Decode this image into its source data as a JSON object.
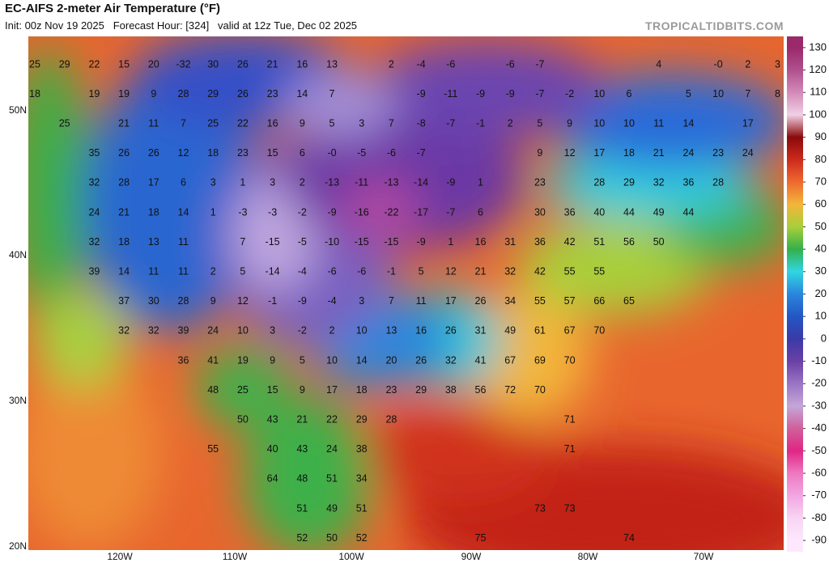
{
  "header": {
    "title": "EC-AIFS 2-meter Air Temperature (°F)",
    "subtitle": "Init: 00z Nov 19 2025   Forecast Hour: [324]   valid at 12z Tue, Dec 02 2025",
    "watermark": "TROPICALTIDBITS.COM"
  },
  "map": {
    "lat_labels": [
      "50N",
      "40N",
      "30N",
      "20N"
    ],
    "lon_labels": [
      "120W",
      "110W",
      "100W",
      "90W",
      "80W",
      "70W"
    ],
    "temperature_labels": [
      [
        25,
        29,
        22,
        15,
        20,
        -32,
        30,
        26,
        21,
        16,
        13,
        2,
        -4,
        -6,
        -6,
        -7,
        4,
        "-0",
        2,
        3
      ],
      [
        18,
        19,
        19,
        9,
        28,
        29,
        26,
        23,
        14,
        7,
        -9,
        -11,
        -9,
        -9,
        -7,
        -2,
        10,
        6,
        5,
        10,
        7,
        8
      ],
      [
        25,
        21,
        11,
        7,
        25,
        22,
        16,
        9,
        5,
        3,
        7,
        -8,
        -7,
        -1,
        2,
        5,
        9,
        10,
        10,
        11,
        14,
        17
      ],
      [
        35,
        26,
        26,
        12,
        18,
        23,
        15,
        6,
        "-0",
        -5,
        -6,
        -7,
        9,
        12,
        17,
        18,
        21,
        24,
        23,
        24
      ],
      [
        32,
        28,
        17,
        6,
        3,
        1,
        3,
        2,
        -13,
        -11,
        -13,
        -14,
        -9,
        1,
        23,
        28,
        29,
        32,
        36,
        28
      ],
      [
        24,
        21,
        18,
        14,
        1,
        -3,
        -3,
        -2,
        -9,
        -16,
        -22,
        -17,
        -7,
        6,
        30,
        36,
        40,
        44,
        49,
        44
      ],
      [
        32,
        18,
        13,
        11,
        7,
        -15,
        -5,
        -10,
        -15,
        -15,
        -9,
        1,
        16,
        31,
        36,
        42,
        51,
        56,
        50
      ],
      [
        39,
        14,
        11,
        11,
        2,
        5,
        -14,
        -4,
        -6,
        -6,
        -1,
        5,
        12,
        21,
        32,
        42,
        55,
        55
      ],
      [
        37,
        30,
        28,
        9,
        12,
        -1,
        -9,
        -4,
        3,
        7,
        11,
        17,
        26,
        34,
        55,
        57,
        66,
        65
      ],
      [
        32,
        32,
        39,
        24,
        10,
        3,
        -2,
        2,
        10,
        13,
        16,
        26,
        31,
        49,
        61,
        67,
        70
      ],
      [
        36,
        41,
        19,
        9,
        5,
        10,
        14,
        20,
        26,
        32,
        41,
        67,
        69,
        70
      ],
      [
        48,
        25,
        15,
        9,
        17,
        18,
        23,
        29,
        38,
        56,
        72,
        70
      ],
      [
        50,
        43,
        21,
        22,
        29,
        28,
        71
      ],
      [
        55,
        40,
        43,
        24,
        38,
        71
      ],
      [
        64,
        48,
        51,
        34
      ],
      [
        51,
        49,
        51,
        73,
        73
      ],
      [
        52,
        50,
        52,
        75,
        74
      ]
    ]
  },
  "colorbar": {
    "lim": [
      -95,
      135
    ],
    "ticks": [
      130,
      120,
      110,
      100,
      90,
      80,
      70,
      60,
      50,
      40,
      30,
      20,
      10,
      0,
      -10,
      -20,
      -30,
      -40,
      -50,
      -60,
      -70,
      -80,
      -90
    ],
    "colors": [
      "#9a2a6a",
      "#b0508e",
      "#d48ab8",
      "#f0d0e4",
      "#8a0a0a",
      "#cc2a1c",
      "#ee6a30",
      "#f2b63a",
      "#a8cf3a",
      "#34b04a",
      "#30d6e2",
      "#2a86dc",
      "#2456c4",
      "#3a3aa8",
      "#6a40a6",
      "#9a74c4",
      "#c4a6d8",
      "#d0609c",
      "#e02684",
      "#ee78c0",
      "#f2a6e2",
      "#f8d4f4",
      "#fde8fd"
    ]
  }
}
